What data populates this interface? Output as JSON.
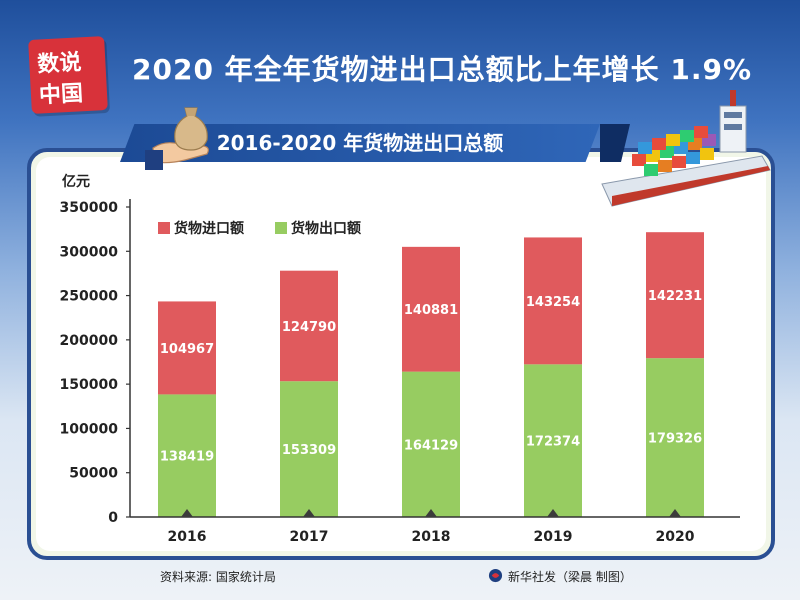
{
  "header": {
    "logo_line1": "数说",
    "logo_line2": "中国",
    "title": "2020 年全年货物进出口总额比上年增长 1.9%"
  },
  "subtitle": "2016-2020 年货物进出口总额",
  "colors": {
    "import": "#e05a5d",
    "export": "#97cc61",
    "frame": "#2a4f93"
  },
  "footer": {
    "source": "资料来源: 国家统计局",
    "credit": "新华社发（梁晨  制图）"
  },
  "chart_data": {
    "type": "bar",
    "stacked": true,
    "categories": [
      "2016",
      "2017",
      "2018",
      "2019",
      "2020"
    ],
    "series": [
      {
        "name": "货物出口额",
        "values": [
          138419,
          153309,
          164129,
          172374,
          179326
        ]
      },
      {
        "name": "货物进口额",
        "values": [
          104967,
          124790,
          140881,
          143254,
          142231
        ]
      }
    ],
    "ylabel": "亿元",
    "ylim": [
      0,
      350000
    ],
    "yticks": [
      0,
      50000,
      100000,
      150000,
      200000,
      250000,
      300000,
      350000
    ],
    "legend": [
      {
        "name": "货物进口额"
      },
      {
        "name": "货物出口额"
      }
    ],
    "legend_position": "top-left",
    "grid": false
  }
}
